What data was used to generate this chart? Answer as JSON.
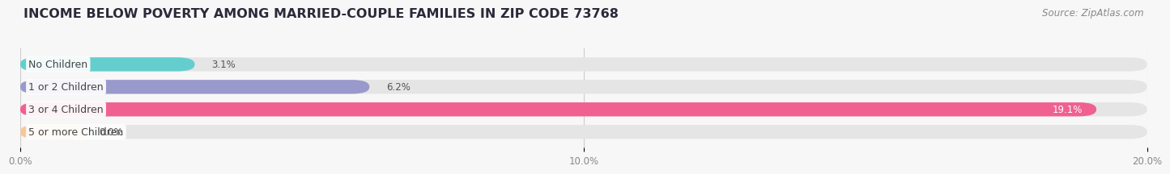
{
  "title": "INCOME BELOW POVERTY AMONG MARRIED-COUPLE FAMILIES IN ZIP CODE 73768",
  "source": "Source: ZipAtlas.com",
  "categories": [
    "No Children",
    "1 or 2 Children",
    "3 or 4 Children",
    "5 or more Children"
  ],
  "values": [
    3.1,
    6.2,
    19.1,
    0.0
  ],
  "bar_colors": [
    "#64cece",
    "#9999cc",
    "#f06090",
    "#f5c899"
  ],
  "background_color": "#f7f7f7",
  "bar_bg_color": "#e5e5e5",
  "xlim": [
    0,
    20.0
  ],
  "xticks": [
    0.0,
    10.0,
    20.0
  ],
  "xtick_labels": [
    "0.0%",
    "10.0%",
    "20.0%"
  ],
  "title_fontsize": 11.5,
  "source_fontsize": 8.5,
  "label_fontsize": 9,
  "value_fontsize": 8.5,
  "value_inside_threshold": 15.0
}
